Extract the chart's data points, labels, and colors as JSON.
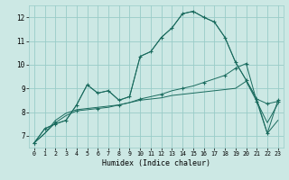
{
  "xlabel": "Humidex (Indice chaleur)",
  "bg_color": "#cce8e4",
  "grid_color": "#99ccc8",
  "line_color": "#1a6b5e",
  "xlim": [
    -0.5,
    23.5
  ],
  "ylim": [
    6.5,
    12.5
  ],
  "xticks": [
    0,
    1,
    2,
    3,
    4,
    5,
    6,
    7,
    8,
    9,
    10,
    11,
    12,
    13,
    14,
    15,
    16,
    17,
    18,
    19,
    20,
    21,
    22,
    23
  ],
  "yticks": [
    7,
    8,
    9,
    10,
    11,
    12
  ],
  "series": {
    "jagged1": [
      6.7,
      7.3,
      7.5,
      7.65,
      8.3,
      9.15,
      8.8,
      8.9,
      8.5,
      8.65,
      10.35,
      10.55,
      11.15,
      11.55,
      12.15,
      12.25,
      12.0,
      11.8,
      11.15,
      10.1,
      9.35,
      8.55,
      8.35,
      8.45
    ],
    "jagged2": [
      6.7,
      7.3,
      7.5,
      7.65,
      8.3,
      9.15,
      8.8,
      8.9,
      8.5,
      8.65,
      10.35,
      10.55,
      11.15,
      11.55,
      12.15,
      12.25,
      12.0,
      11.8,
      11.15,
      10.1,
      9.35,
      8.55,
      7.1,
      7.65
    ],
    "smooth1": [
      6.7,
      7.1,
      7.55,
      7.85,
      8.05,
      8.1,
      8.15,
      8.2,
      8.3,
      8.4,
      8.55,
      8.65,
      8.75,
      8.9,
      9.0,
      9.1,
      9.25,
      9.4,
      9.55,
      9.85,
      10.05,
      8.45,
      7.1,
      8.5
    ],
    "smooth2": [
      6.7,
      7.1,
      7.65,
      7.95,
      8.1,
      8.15,
      8.2,
      8.25,
      8.3,
      8.4,
      8.5,
      8.55,
      8.6,
      8.7,
      8.75,
      8.8,
      8.85,
      8.9,
      8.95,
      9.0,
      9.3,
      8.45,
      7.55,
      8.35
    ]
  },
  "marker_x_jagged": [
    0,
    1,
    2,
    3,
    4,
    5,
    6,
    7,
    8,
    9,
    10,
    11,
    12,
    13,
    14,
    15,
    16,
    17,
    18,
    19,
    20,
    21,
    22,
    23
  ],
  "marker_x_smooth": [
    0,
    2,
    4,
    6,
    8,
    10,
    12,
    14,
    16,
    18,
    19,
    20,
    21,
    22,
    23
  ]
}
